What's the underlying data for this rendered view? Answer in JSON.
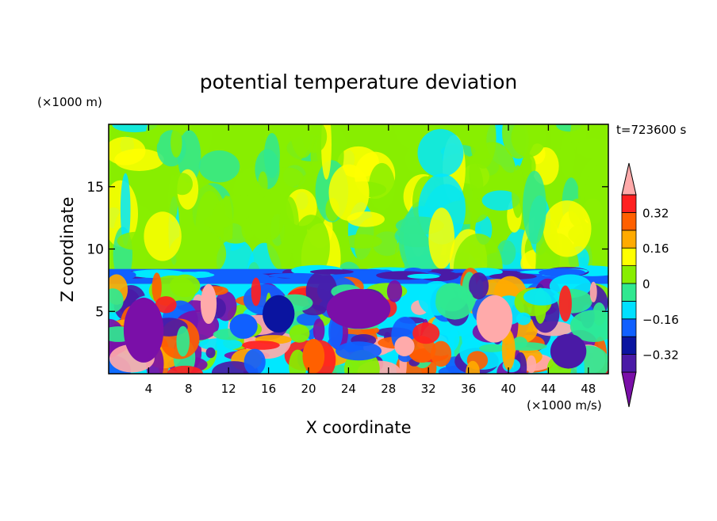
{
  "chart_data": {
    "type": "heatmap",
    "title": "potential temperature deviation",
    "xlabel": "X coordinate",
    "ylabel": "Z coordinate",
    "x_unit": "(×1000 m/s)",
    "y_unit": "(×1000 m)",
    "time_label": "t=723600 s",
    "xlim": [
      0,
      50
    ],
    "ylim": [
      0,
      20
    ],
    "x_ticks": [
      4,
      8,
      12,
      16,
      20,
      24,
      28,
      32,
      36,
      40,
      44,
      48
    ],
    "y_ticks": [
      5,
      10,
      15
    ],
    "grid": false,
    "legend": "right colorbar",
    "colorbar": {
      "levels": [
        -0.4,
        -0.32,
        -0.24,
        -0.16,
        -0.08,
        0,
        0.08,
        0.16,
        0.24,
        0.32,
        0.4
      ],
      "tick_values": [
        0.32,
        0.16,
        0,
        -0.16,
        -0.32
      ],
      "tick_labels": [
        "0.32",
        "0.16",
        "0",
        "−0.16",
        "−0.32"
      ],
      "colors": [
        "#7a0fa8",
        "#4a1aa6",
        "#0a14a0",
        "#1060ff",
        "#00e0ff",
        "#30e890",
        "#88ee00",
        "#ffff00",
        "#ffaa00",
        "#ff6000",
        "#ff2020",
        "#ffaaaa"
      ]
    },
    "bottom_palette": [
      "#00e8ff",
      "#30e890",
      "#88ee00",
      "#ffaa00",
      "#ff6000",
      "#ff2020",
      "#ffaaaa",
      "#7a0fa8",
      "#4a1aa6",
      "#1060ff"
    ],
    "upper_palette": [
      "#30e890",
      "#88ee00",
      "#88ee00",
      "#88ee00",
      "#ffff00",
      "#00e8ff"
    ],
    "inversion_band_colors": [
      "#4a1aa6",
      "#1060ff",
      "#00e8ff"
    ]
  }
}
